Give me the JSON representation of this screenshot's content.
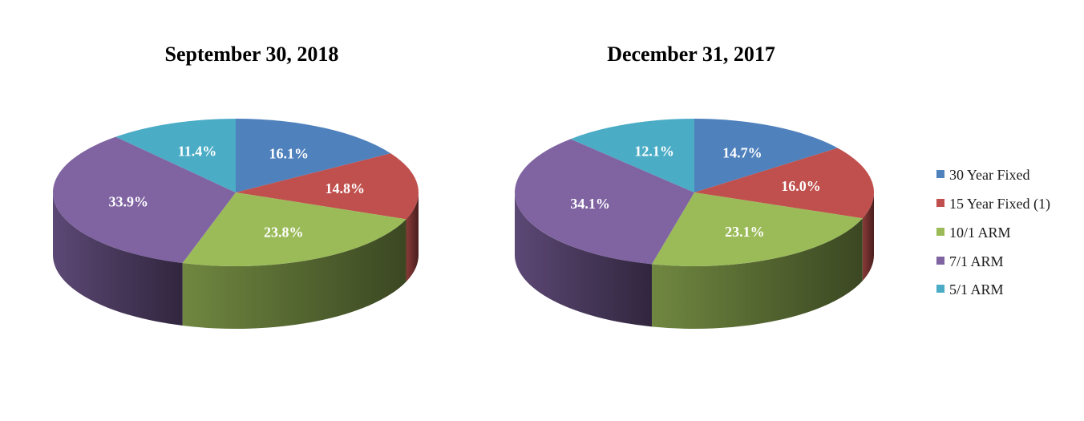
{
  "legend": {
    "items": [
      {
        "label": "30 Year Fixed",
        "color": "#4f81bd"
      },
      {
        "label": "15 Year Fixed (1)",
        "color": "#c0504d"
      },
      {
        "label": "10/1 ARM",
        "color": "#9bbb59"
      },
      {
        "label": "7/1 ARM",
        "color": "#8064a2"
      },
      {
        "label": "5/1 ARM",
        "color": "#4bacc6"
      }
    ]
  },
  "chart_data": [
    {
      "type": "pie",
      "title": "September 30, 2018",
      "categories": [
        "30 Year Fixed",
        "15 Year Fixed (1)",
        "10/1 ARM",
        "7/1 ARM",
        "5/1 ARM"
      ],
      "values": [
        16.1,
        14.8,
        23.8,
        33.9,
        11.4
      ],
      "data_labels": [
        "16.1%",
        "14.8%",
        "23.8%",
        "33.9%",
        "11.4%"
      ],
      "legend_position": "right"
    },
    {
      "type": "pie",
      "title": "December 31, 2017",
      "categories": [
        "30 Year Fixed",
        "15 Year Fixed (1)",
        "10/1 ARM",
        "7/1 ARM",
        "5/1 ARM"
      ],
      "values": [
        14.7,
        16.0,
        23.1,
        34.1,
        12.1
      ],
      "data_labels": [
        "14.7%",
        "16.0%",
        "23.1%",
        "34.1%",
        "12.1%"
      ],
      "legend_position": "right"
    }
  ]
}
